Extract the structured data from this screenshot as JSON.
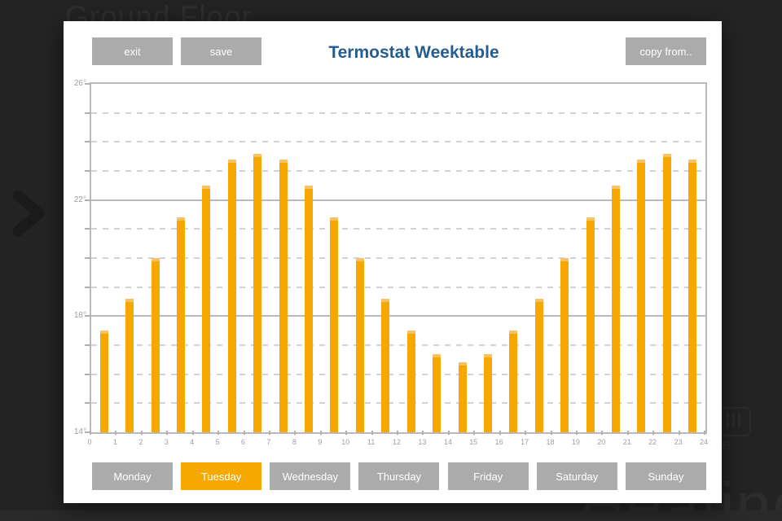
{
  "background": {
    "page_title": "Ground Floor",
    "partial_word": "Heating",
    "partial_letter": "e",
    "colors": {
      "page_bg": "#242424",
      "ghost_text": "#2d2d2d"
    }
  },
  "modal": {
    "title": "Termostat Weektable",
    "buttons": {
      "exit": "exit",
      "save": "save",
      "copy_from": "copy from.."
    },
    "days": [
      {
        "label": "Monday",
        "selected": false
      },
      {
        "label": "Tuesday",
        "selected": true
      },
      {
        "label": "Wednesday",
        "selected": false
      },
      {
        "label": "Thursday",
        "selected": false
      },
      {
        "label": "Friday",
        "selected": false
      },
      {
        "label": "Saturday",
        "selected": false
      },
      {
        "label": "Sunday",
        "selected": false
      }
    ],
    "colors": {
      "accent_orange": "#F6A800",
      "bar_cap": "#F8C262",
      "button_gray": "#ABABAB",
      "title_blue": "#265D8F"
    }
  },
  "chart_data": {
    "type": "bar",
    "title": "Termostat Weektable",
    "xlabel": "",
    "ylabel": "",
    "hours": [
      0,
      1,
      2,
      3,
      4,
      5,
      6,
      7,
      8,
      9,
      10,
      11,
      12,
      13,
      14,
      15,
      16,
      17,
      18,
      19,
      20,
      21,
      22,
      23
    ],
    "values": [
      17.5,
      18.6,
      20.0,
      21.4,
      22.5,
      23.4,
      23.6,
      23.4,
      22.5,
      21.4,
      20.0,
      18.6,
      17.5,
      16.7,
      16.4,
      16.7,
      17.5,
      18.6,
      20.0,
      21.4,
      22.5,
      23.4,
      23.6,
      23.4
    ],
    "unit": "°C",
    "ylim": [
      14,
      26
    ],
    "solid_gridlines": [
      14,
      18,
      22,
      26
    ],
    "dashed_gridlines": [
      15,
      16,
      17,
      19,
      20,
      21,
      23,
      24,
      25
    ],
    "ytick_labels": [
      {
        "value": 26,
        "label": "26°"
      },
      {
        "value": 22,
        "label": "22°"
      },
      {
        "value": 18,
        "label": "18°"
      },
      {
        "value": 14,
        "label": "14°"
      }
    ],
    "xtick_labels": [
      "0",
      "1",
      "2",
      "3",
      "4",
      "5",
      "6",
      "7",
      "8",
      "9",
      "10",
      "11",
      "12",
      "13",
      "14",
      "15",
      "16",
      "17",
      "18",
      "19",
      "20",
      "21",
      "22",
      "23",
      "24"
    ],
    "bar_color": "#F6A800",
    "grid": true,
    "legend": false
  }
}
